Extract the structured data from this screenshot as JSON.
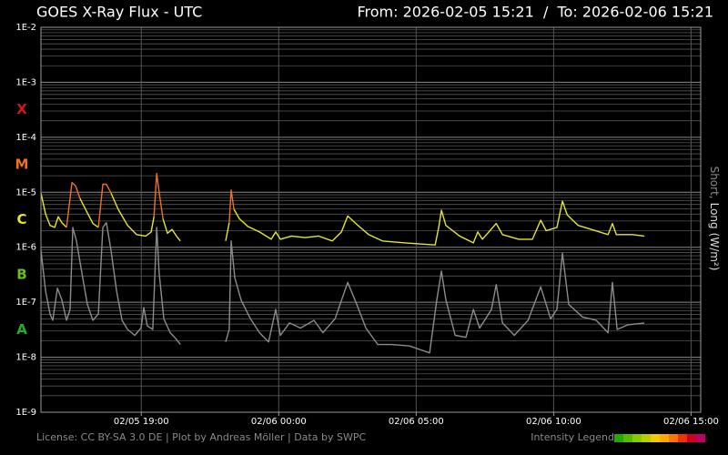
{
  "chart_data": {
    "type": "line",
    "title": "GOES X-Ray Flux - UTC",
    "time_range": "From: 2026-02-05 15:21  /  To: 2026-02-06 15:21",
    "footer": "License: CC BY-SA 3.0 DE | Plot by Andreas Möller | Data by SWPC",
    "axis_label_separator": ",",
    "axis_label_unit": "(W/m²)",
    "log_scale": true,
    "grid": true,
    "minor_grid": true,
    "xlim": [
      15.35,
      39.35
    ],
    "xticks": [
      {
        "value": 19,
        "label": "02/05 19:00"
      },
      {
        "value": 24,
        "label": "02/06 00:00"
      },
      {
        "value": 29,
        "label": "02/06 05:00"
      },
      {
        "value": 34,
        "label": "02/06 10:00"
      },
      {
        "value": 39,
        "label": "02/06 15:00"
      }
    ],
    "ylim": [
      1e-09,
      0.01
    ],
    "yticks": [
      {
        "value": 1e-09,
        "label": "1E-9"
      },
      {
        "value": 1e-08,
        "label": "1E-8"
      },
      {
        "value": 1e-07,
        "label": "1E-7"
      },
      {
        "value": 1e-06,
        "label": "1E-6"
      },
      {
        "value": 1e-05,
        "label": "1E-5"
      },
      {
        "value": 0.0001,
        "label": "1E-4"
      },
      {
        "value": 0.001,
        "label": "1E-3"
      },
      {
        "value": 0.01,
        "label": "1E-2"
      }
    ],
    "flux_classes": [
      {
        "label": "X",
        "color": "#cc1a1a"
      },
      {
        "label": "M",
        "color": "#f07020"
      },
      {
        "label": "C",
        "color": "#e6e62a"
      },
      {
        "label": "B",
        "color": "#66c21c"
      },
      {
        "label": "A",
        "color": "#22b022"
      }
    ],
    "intensity_legend": {
      "label": "Intensity Legend",
      "colors": [
        "#22aa00",
        "#55bb00",
        "#88cc00",
        "#bbcc00",
        "#eecc00",
        "#ffaa00",
        "#ff7700",
        "#ee3300",
        "#cc0022",
        "#bb0066"
      ]
    },
    "series": [
      {
        "name": "Short",
        "color": "#8c8c8c",
        "x": [
          15.35,
          15.52,
          15.68,
          15.78,
          15.95,
          16.11,
          16.28,
          16.41,
          16.51,
          16.64,
          16.84,
          17.04,
          17.24,
          17.44,
          17.6,
          17.73,
          17.9,
          18.1,
          18.3,
          18.5,
          18.76,
          18.99,
          19.09,
          19.22,
          19.42,
          19.56,
          19.65,
          19.82,
          20.05,
          20.25,
          20.42,
          21.5,
          22.07,
          22.2,
          22.27,
          22.4,
          22.63,
          22.97,
          23.3,
          23.63,
          23.89,
          24.06,
          24.39,
          24.79,
          25.28,
          25.61,
          26.05,
          26.51,
          26.84,
          27.17,
          27.6,
          28.1,
          28.76,
          29.49,
          29.75,
          29.92,
          30.08,
          30.42,
          30.81,
          31.08,
          31.31,
          31.74,
          31.91,
          32.14,
          32.57,
          33.07,
          33.53,
          33.89,
          34.12,
          34.32,
          34.55,
          35.05,
          35.55,
          35.98,
          36.14,
          36.31,
          36.71,
          37.3
        ],
        "values": [
          8.8e-07,
          1.6e-07,
          6.1e-08,
          4.7e-08,
          1.8e-07,
          1.1e-07,
          4.7e-08,
          7.4e-08,
          2.3e-06,
          1.3e-06,
          3.4e-07,
          9e-08,
          4.7e-08,
          6.1e-08,
          2.3e-06,
          2.8e-06,
          8.8e-07,
          1.6e-07,
          4.7e-08,
          3.2e-08,
          2.5e-08,
          3.4e-08,
          8e-08,
          3.7e-08,
          3.2e-08,
          2.3e-06,
          3.4e-07,
          5e-08,
          2.8e-08,
          2.2e-08,
          1.7e-08,
          null,
          1.9e-08,
          3.2e-08,
          1.3e-06,
          2.8e-07,
          1.1e-07,
          5e-08,
          2.8e-08,
          1.9e-08,
          7.4e-08,
          2.5e-08,
          4.2e-08,
          3.4e-08,
          4.7e-08,
          2.8e-08,
          5e-08,
          2.3e-07,
          9.1e-08,
          3.4e-08,
          1.7e-08,
          1.7e-08,
          1.6e-08,
          1.2e-08,
          1.1e-07,
          3.7e-07,
          1.1e-07,
          2.5e-08,
          2.3e-08,
          7.4e-08,
          3.4e-08,
          7.4e-08,
          2.1e-07,
          4.2e-08,
          2.5e-08,
          4.7e-08,
          1.9e-07,
          5e-08,
          7.4e-08,
          7.8e-07,
          9.1e-08,
          5.4e-08,
          4.7e-08,
          2.8e-08,
          2.3e-07,
          3.2e-08,
          3.9e-08,
          4.2e-08
        ]
      },
      {
        "name": "Long",
        "color": "#e6e62a",
        "color_by_class": true,
        "x": [
          15.35,
          15.52,
          15.68,
          15.85,
          15.98,
          16.11,
          16.28,
          16.48,
          16.61,
          16.77,
          17.01,
          17.24,
          17.44,
          17.6,
          17.73,
          17.9,
          18.16,
          18.5,
          18.83,
          19.16,
          19.36,
          19.46,
          19.56,
          19.65,
          19.79,
          19.95,
          20.12,
          20.28,
          20.42,
          21.5,
          22.07,
          22.2,
          22.27,
          22.37,
          22.57,
          22.87,
          23.3,
          23.73,
          23.89,
          24.06,
          24.46,
          24.95,
          25.45,
          25.95,
          26.28,
          26.51,
          26.84,
          27.27,
          27.77,
          28.6,
          29.69,
          29.82,
          29.92,
          30.08,
          30.58,
          31.08,
          31.24,
          31.41,
          31.91,
          32.14,
          32.73,
          33.23,
          33.53,
          33.73,
          34.12,
          34.32,
          34.49,
          34.89,
          35.38,
          35.98,
          36.14,
          36.28,
          36.87,
          37.3
        ],
        "values": [
          9.7e-06,
          4e-06,
          2.5e-06,
          2.3e-06,
          3.6e-06,
          2.8e-06,
          2.3e-06,
          1.5e-05,
          1.3e-05,
          7.7e-06,
          4.5e-06,
          2.7e-06,
          2.3e-06,
          1.4e-05,
          1.4e-05,
          9.7e-06,
          4.9e-06,
          2.5e-06,
          1.7e-06,
          1.6e-06,
          1.9e-06,
          3.6e-06,
          2.2e-05,
          1e-05,
          3.3e-06,
          1.8e-06,
          2.1e-06,
          1.6e-06,
          1.3e-06,
          null,
          1.3e-06,
          2.8e-06,
          1.1e-05,
          4.9e-06,
          3.3e-06,
          2.4e-06,
          1.9e-06,
          1.4e-06,
          1.9e-06,
          1.4e-06,
          1.6e-06,
          1.5e-06,
          1.6e-06,
          1.3e-06,
          1.9e-06,
          3.7e-06,
          2.6e-06,
          1.7e-06,
          1.3e-06,
          1.2e-06,
          1.1e-06,
          2.3e-06,
          4.7e-06,
          2.5e-06,
          1.6e-06,
          1.2e-06,
          1.9e-06,
          1.4e-06,
          2.7e-06,
          1.7e-06,
          1.4e-06,
          1.4e-06,
          3.1e-06,
          2e-06,
          2.3e-06,
          6.9e-06,
          3.9e-06,
          2.5e-06,
          2.1e-06,
          1.7e-06,
          2.7e-06,
          1.7e-06,
          1.7e-06,
          1.6e-06
        ]
      }
    ]
  }
}
